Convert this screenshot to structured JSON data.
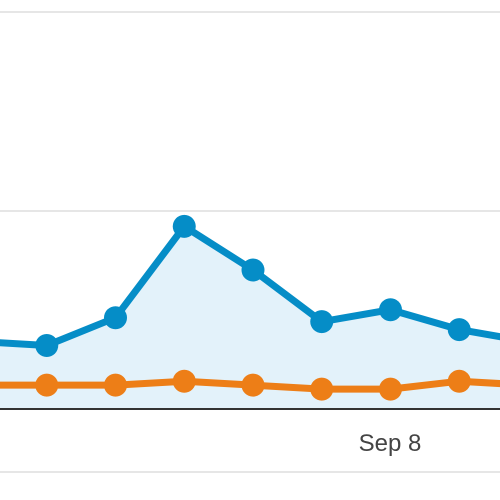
{
  "chart_data": {
    "type": "line",
    "x_tick_labels": [
      "Sep 8"
    ],
    "ylim": [
      0,
      100
    ],
    "grid": true,
    "series": [
      {
        "color": "#058dc7",
        "fill": "#e3f2fa",
        "values": [
          17,
          16,
          23,
          46,
          35,
          22,
          25,
          20,
          17
        ]
      },
      {
        "color": "#ed7e17",
        "values": [
          6,
          6,
          6,
          7,
          6,
          5,
          5,
          7,
          6
        ]
      }
    ]
  }
}
